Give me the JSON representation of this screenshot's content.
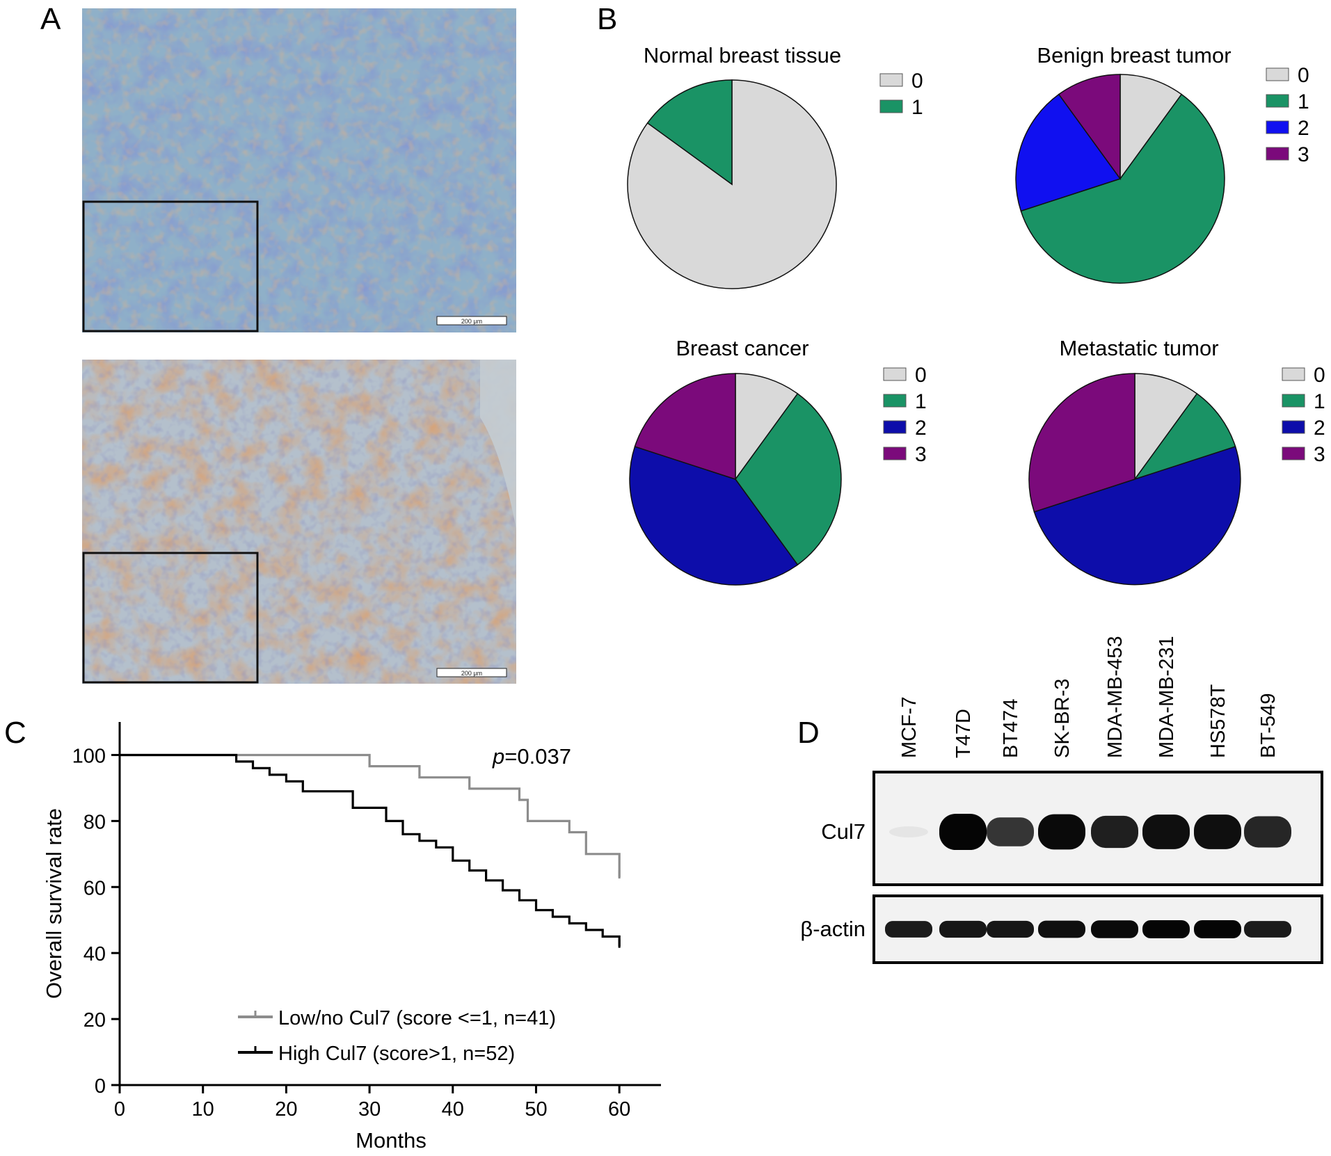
{
  "panel_letters": [
    "A",
    "B",
    "C",
    "D"
  ],
  "histology": {
    "scale_bar_label": "200 μm",
    "images": [
      {
        "colors": {
          "base": "#8fb0c8",
          "stain": "#3a4aa6",
          "accent": "#a0704e"
        }
      },
      {
        "colors": {
          "base": "#b4c0cc",
          "stain": "#b25a2a",
          "accent": "#4a4f8a"
        }
      }
    ]
  },
  "chart_data": [
    {
      "type": "pie",
      "title": "Normal breast tissue",
      "categories": [
        "0",
        "1"
      ],
      "values": [
        85,
        15
      ],
      "colors": [
        "#d9d9d9",
        "#1a9365"
      ],
      "legend": "right"
    },
    {
      "type": "pie",
      "title": "Benign breast tumor",
      "categories": [
        "0",
        "1",
        "2",
        "3"
      ],
      "values": [
        10,
        60,
        20,
        10
      ],
      "colors": [
        "#d9d9d9",
        "#1a9365",
        "#1010f0",
        "#7b0a7b"
      ],
      "legend": "right"
    },
    {
      "type": "pie",
      "title": "Breast cancer",
      "categories": [
        "0",
        "1",
        "2",
        "3"
      ],
      "values": [
        10,
        30,
        40,
        20
      ],
      "colors": [
        "#d9d9d9",
        "#1a9365",
        "#0d0daa",
        "#7b0a7b"
      ],
      "legend": "right"
    },
    {
      "type": "pie",
      "title": "Metastatic tumor",
      "categories": [
        "0",
        "1",
        "2",
        "3"
      ],
      "values": [
        10,
        10,
        50,
        30
      ],
      "colors": [
        "#d9d9d9",
        "#1a9365",
        "#0d0daa",
        "#7b0a7b"
      ],
      "legend": "right"
    },
    {
      "type": "line",
      "subtype": "kaplan-meier",
      "xlabel": "Months",
      "ylabel": "Overall survival rate",
      "xlim": [
        0,
        65
      ],
      "ylim": [
        0,
        110
      ],
      "xticks": [
        0,
        10,
        20,
        30,
        40,
        50,
        60
      ],
      "yticks": [
        0,
        20,
        40,
        60,
        80,
        100
      ],
      "annotation": {
        "italic": "p",
        "rest": "=0.037"
      },
      "legend": "bottom-right",
      "series": [
        {
          "name": "Low/no Cul7 (score <=1, n=41)",
          "color": "#8c8c8c",
          "x": [
            0,
            30,
            36,
            42,
            48,
            49,
            54,
            56,
            60
          ],
          "y": [
            100,
            96.6,
            93.2,
            89.8,
            86.4,
            80,
            76.6,
            70,
            63
          ]
        },
        {
          "name": "High Cul7 (score>1, n=52)",
          "color": "#000000",
          "x": [
            0,
            14,
            16,
            18,
            20,
            22,
            28,
            32,
            34,
            36,
            38,
            40,
            42,
            44,
            46,
            48,
            50,
            52,
            54,
            56,
            58,
            60
          ],
          "y": [
            100,
            98,
            96,
            94,
            92,
            89,
            84,
            80,
            76,
            74,
            72,
            68,
            65,
            62,
            59,
            56,
            53,
            51,
            49,
            47,
            45,
            42
          ]
        }
      ]
    }
  ],
  "western_blot": {
    "lanes": [
      "MCF-7",
      "T47D",
      "BT474",
      "SK-BR-3",
      "MDA-MB-453",
      "MDA-MB-231",
      "HS578T",
      "BT-549"
    ],
    "rows": [
      {
        "label": "Cul7",
        "intensities": [
          0.03,
          1.0,
          0.55,
          0.95,
          0.75,
          0.9,
          0.9,
          0.7
        ]
      },
      {
        "label": "β-actin",
        "intensities": [
          0.8,
          0.85,
          0.85,
          0.9,
          0.95,
          1.0,
          1.0,
          0.8
        ]
      }
    ]
  }
}
